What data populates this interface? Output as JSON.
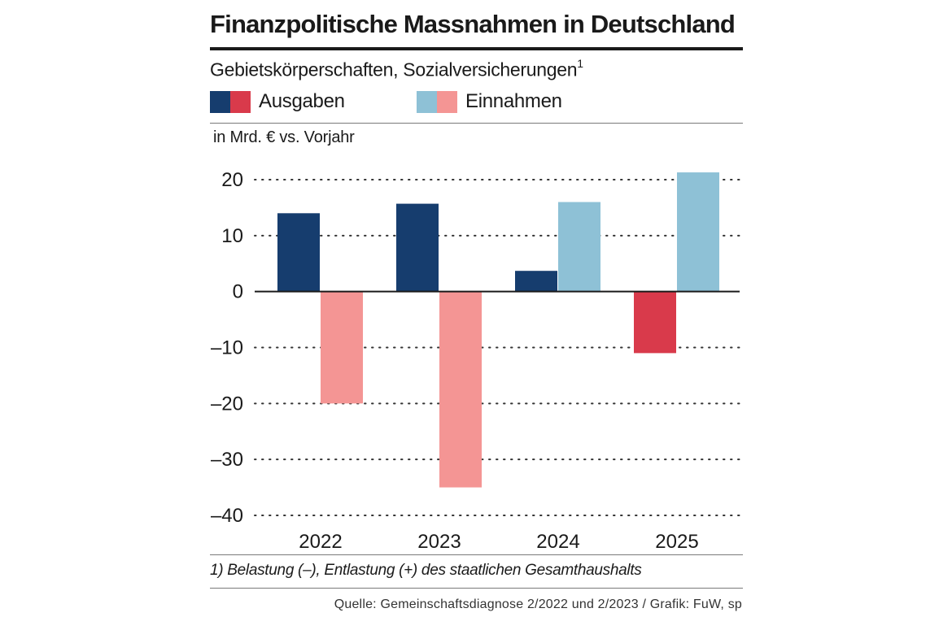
{
  "title": "Finanzpolitische Massnahmen in Deutschland",
  "subtitle": "Gebietskörperschaften, Sozialversicherungen",
  "subtitle_footnote_marker": "1",
  "legend": {
    "ausgaben_label": "Ausgaben",
    "einnahmen_label": "Einnahmen"
  },
  "unit_label": "in Mrd. € vs. Vorjahr",
  "footnote": "1) Belastung (–), Entlastung (+) des staatlichen Gesamthaushalts",
  "source": "Quelle: Gemeinschaftsdiagnose 2/2022 und 2/2023 / Grafik: FuW, sp",
  "colors": {
    "ausgaben_belastung": "#d93a4b",
    "ausgaben_entlastung": "#163d6e",
    "einnahmen_belastung": "#f49594",
    "einnahmen_entlastung": "#8ec1d6",
    "grid": "#333333",
    "text": "#1a1a1a"
  },
  "chart_data": {
    "type": "bar",
    "title": "Finanzpolitische Massnahmen in Deutschland",
    "ylabel": "in Mrd. € vs. Vorjahr",
    "categories": [
      "2022",
      "2023",
      "2024",
      "2025"
    ],
    "series": [
      {
        "name": "Ausgaben",
        "values": [
          14,
          15.7,
          3.7,
          -11
        ]
      },
      {
        "name": "Einnahmen",
        "values": [
          -20,
          -35,
          16,
          21.3
        ]
      }
    ],
    "ylim": [
      -40,
      20
    ],
    "yticks": [
      20,
      10,
      0,
      -10,
      -20,
      -30,
      -40
    ],
    "ytick_labels": [
      "20",
      "10",
      "0",
      "–10",
      "–20",
      "–30",
      "–40"
    ],
    "grid": true
  }
}
